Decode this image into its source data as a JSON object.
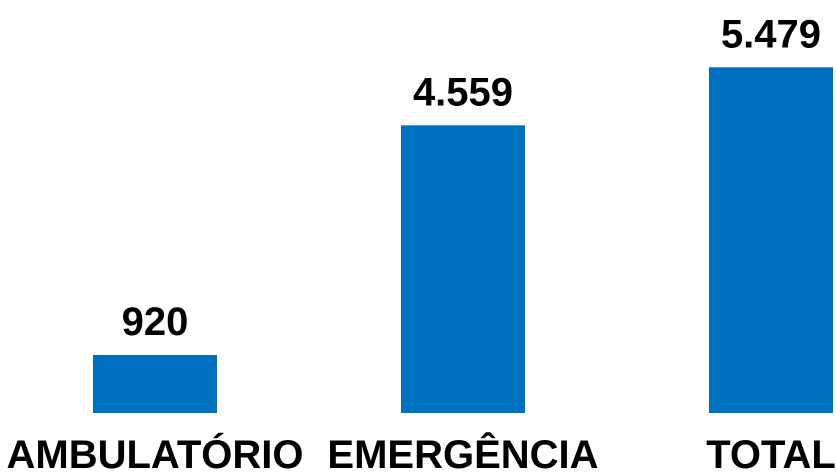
{
  "chart_data": {
    "type": "bar",
    "categories": [
      "AMBULATÓRIO",
      "EMERGÊNCIA",
      "TOTAL"
    ],
    "values": [
      920,
      4559,
      5479
    ],
    "value_labels": [
      "920",
      "4.559",
      "5.479"
    ],
    "title": "",
    "xlabel": "",
    "ylabel": "",
    "grid": false,
    "legend": "none",
    "colors": {
      "bar": "#0070C0"
    }
  }
}
